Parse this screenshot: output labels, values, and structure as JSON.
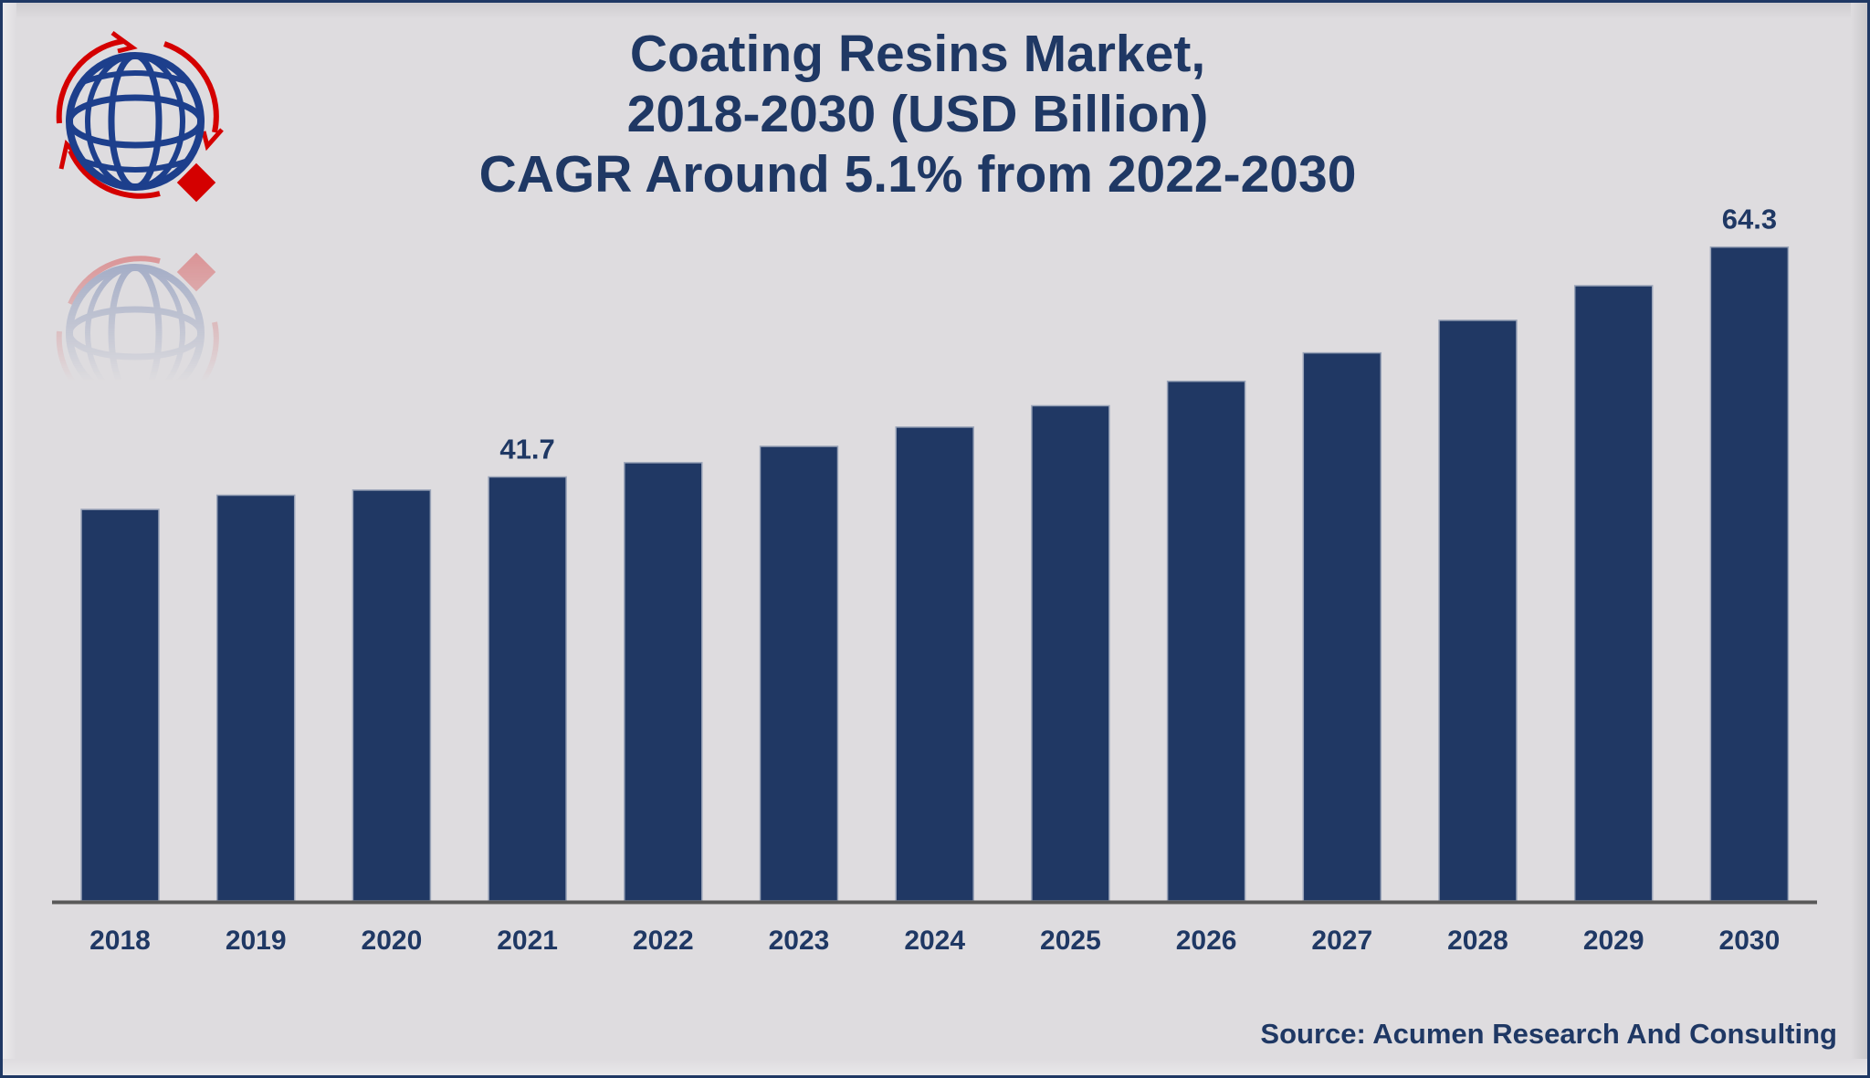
{
  "logo": {
    "icon": "globe-with-arrows-logo"
  },
  "title_lines": [
    "Coating Resins Market,",
    "2018-2030 (USD Billion)",
    "CAGR Around 5.1% from 2022-2030"
  ],
  "source": "Source: Acumen Research And Consulting",
  "colors": {
    "bar": "#203864",
    "text": "#1f3864",
    "axis": "#595959",
    "background": "#dedcdf",
    "logo_blue": "#1d3f8c",
    "logo_red": "#d40000"
  },
  "chart_data": {
    "type": "bar",
    "title": "Coating Resins Market, 2018-2030 (USD Billion) CAGR Around 5.1% from 2022-2030",
    "xlabel": "",
    "ylabel": "",
    "ylim": [
      0,
      70
    ],
    "grid": false,
    "legend": "none",
    "categories": [
      "2018",
      "2019",
      "2020",
      "2021",
      "2022",
      "2023",
      "2024",
      "2025",
      "2026",
      "2027",
      "2028",
      "2029",
      "2030"
    ],
    "values": [
      38.5,
      39.9,
      40.4,
      41.7,
      43.1,
      44.7,
      46.6,
      48.7,
      51.1,
      53.9,
      57.1,
      60.5,
      64.3
    ],
    "data_labels": [
      {
        "category": "2021",
        "text": "41.7"
      },
      {
        "category": "2030",
        "text": "64.3"
      }
    ]
  }
}
